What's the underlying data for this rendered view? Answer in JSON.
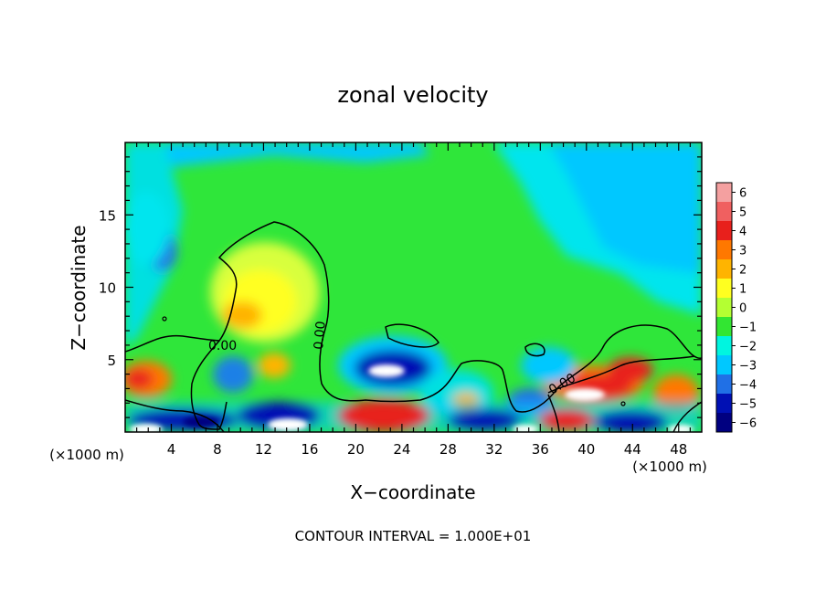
{
  "chart_data": {
    "type": "heatmap",
    "title": "zonal velocity",
    "xlabel": "X−coordinate",
    "ylabel": "Z−coordinate",
    "x_unit": "(×1000 m)",
    "xlim": [
      0,
      50
    ],
    "ylim": [
      0,
      20
    ],
    "x_ticks": [
      4,
      8,
      12,
      16,
      20,
      24,
      28,
      32,
      36,
      40,
      44,
      48
    ],
    "y_ticks": [
      5,
      10,
      15
    ],
    "colorbar": {
      "levels": [
        6,
        5,
        4,
        3,
        2,
        1,
        0,
        -1,
        -2,
        -3,
        -4,
        -5,
        -6
      ],
      "labels": [
        "6",
        "5",
        "4",
        "3",
        "2",
        "1",
        "0",
        "−1",
        "−2",
        "−3",
        "−4",
        "−5",
        "−6"
      ],
      "colors": [
        "#f4a0a0",
        "#f06060",
        "#e8201c",
        "#ff7800",
        "#ffb400",
        "#ffff20",
        "#b4ff32",
        "#32e632",
        "#00f5e0",
        "#00c8ff",
        "#2070e6",
        "#0010b4",
        "#000080"
      ]
    },
    "contour_label": "0.00",
    "contour_interval_text": "CONTOUR INTERVAL =  1.000E+01",
    "grid": false,
    "legend": "right"
  }
}
